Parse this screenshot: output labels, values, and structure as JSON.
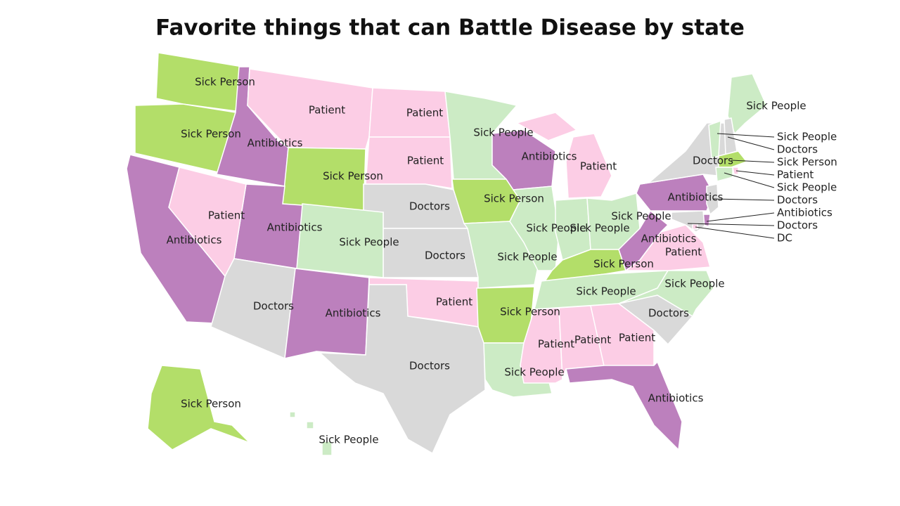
{
  "title": "Favorite things that can Battle Disease by state",
  "regions": [
    {
      "label": "Sick Person",
      "color": "#b3de69"
    },
    {
      "label": "Sick Person",
      "color": "#b3de69"
    },
    {
      "label": "Antibiotics",
      "color": "#bc80bd"
    },
    {
      "label": "Patient",
      "color": "#fccde5"
    },
    {
      "label": "Patient",
      "color": "#fccde5"
    },
    {
      "label": "Patient",
      "color": "#fccde5"
    },
    {
      "label": "Sick Person",
      "color": "#b3de69"
    },
    {
      "label": "Doctors",
      "color": "#d9d9d9"
    },
    {
      "label": "Doctors",
      "color": "#d9d9d9"
    },
    {
      "label": "Sick People",
      "color": "#ccebc5"
    },
    {
      "label": "Antibiotics",
      "color": "#bc80bd"
    },
    {
      "label": "Patient",
      "color": "#fccde5"
    },
    {
      "label": "Antibiotics",
      "color": "#bc80bd"
    },
    {
      "label": "Doctors",
      "color": "#d9d9d9"
    },
    {
      "label": "Antibiotics",
      "color": "#bc80bd"
    },
    {
      "label": "Patient",
      "color": "#fccde5"
    },
    {
      "label": "Doctors",
      "color": "#d9d9d9"
    },
    {
      "label": "Sick People",
      "color": "#ccebc5"
    },
    {
      "label": "Sick Person",
      "color": "#b3de69"
    },
    {
      "label": "Sick People",
      "color": "#ccebc5"
    },
    {
      "label": "Sick Person",
      "color": "#b3de69"
    },
    {
      "label": "Sick People",
      "color": "#ccebc5"
    },
    {
      "label": "Antibiotics",
      "color": "#bc80bd"
    },
    {
      "label": "Patient",
      "color": "#fccde5"
    },
    {
      "label": "Sick People",
      "color": "#ccebc5"
    },
    {
      "label": "Sick People",
      "color": "#ccebc5"
    },
    {
      "label": "Sick People",
      "color": "#ccebc5"
    },
    {
      "label": "Sick Person",
      "color": "#b3de69"
    },
    {
      "label": "Sick People",
      "color": "#ccebc5"
    },
    {
      "label": "Patient",
      "color": "#fccde5"
    },
    {
      "label": "Patient",
      "color": "#fccde5"
    },
    {
      "label": "Patient",
      "color": "#fccde5"
    },
    {
      "label": "Antibiotics",
      "color": "#bc80bd"
    },
    {
      "label": "Doctors",
      "color": "#d9d9d9"
    },
    {
      "label": "Sick People",
      "color": "#ccebc5"
    },
    {
      "label": "Patient",
      "color": "#fccde5"
    },
    {
      "label": "Antibiotics",
      "color": "#bc80bd"
    },
    {
      "label": "Antibiotics",
      "color": "#bc80bd"
    },
    {
      "label": "Doctors",
      "color": "#d9d9d9"
    },
    {
      "label": "Sick People",
      "color": "#ccebc5"
    },
    {
      "label": "Sick People",
      "color": "#ccebc5"
    },
    {
      "label": "Doctors",
      "color": "#d9d9d9"
    },
    {
      "label": "Sick Person",
      "color": "#b3de69"
    },
    {
      "label": "Patient",
      "color": "#fccde5"
    },
    {
      "label": "Sick People",
      "color": "#ccebc5"
    },
    {
      "label": "Doctors",
      "color": "#d9d9d9"
    },
    {
      "label": "Antibiotics",
      "color": "#bc80bd"
    },
    {
      "label": "Doctors",
      "color": "#d9d9d9"
    },
    {
      "label": "DC",
      "color": "#fccde5"
    },
    {
      "label": "Sick Person",
      "color": "#b3de69"
    },
    {
      "label": "Sick People",
      "color": "#ccebc5"
    }
  ]
}
